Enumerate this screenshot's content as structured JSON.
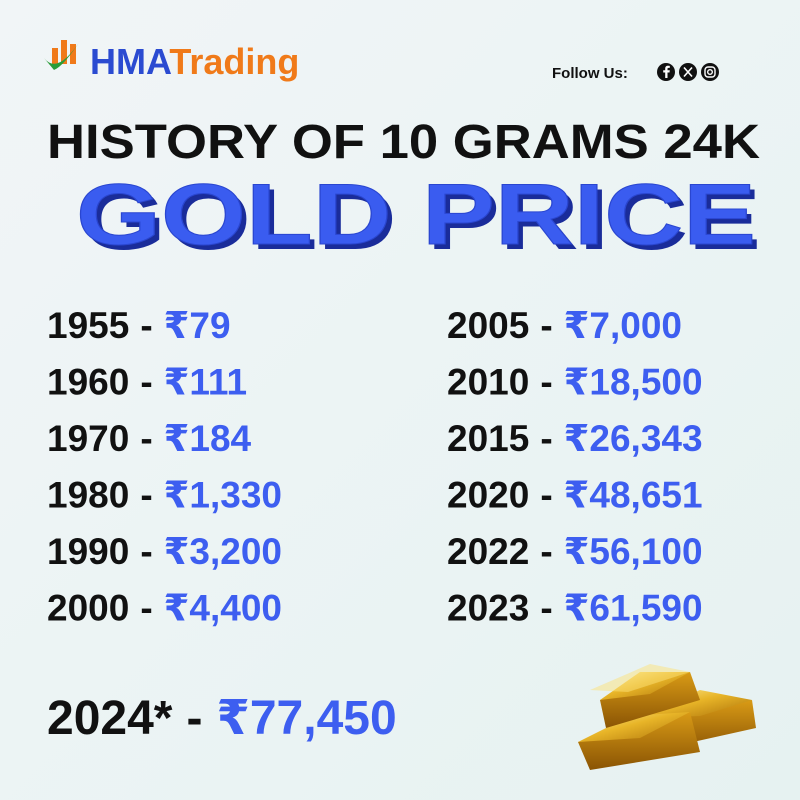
{
  "header": {
    "brand_first": "HMA",
    "brand_second": "Trading",
    "follow": "Follow Us:"
  },
  "title": {
    "line1": "HISTORY OF 10 GRAMS 24K",
    "line2": "GOLD PRICE"
  },
  "separator": "-",
  "left_column": [
    {
      "year": "1955",
      "price": "₹79"
    },
    {
      "year": "1960",
      "price": "₹111"
    },
    {
      "year": "1970",
      "price": "₹184"
    },
    {
      "year": "1980",
      "price": "₹1,330"
    },
    {
      "year": "1990",
      "price": "₹3,200"
    },
    {
      "year": "2000",
      "price": "₹4,400"
    }
  ],
  "right_column": [
    {
      "year": "2005",
      "price": "₹7,000"
    },
    {
      "year": "2010",
      "price": "₹18,500"
    },
    {
      "year": "2015",
      "price": "₹26,343"
    },
    {
      "year": "2020",
      "price": "₹48,651"
    },
    {
      "year": "2022",
      "price": "₹56,100"
    },
    {
      "year": "2023",
      "price": "₹61,590"
    }
  ],
  "highlight": {
    "year": "2024*",
    "price": "₹77,450"
  }
}
